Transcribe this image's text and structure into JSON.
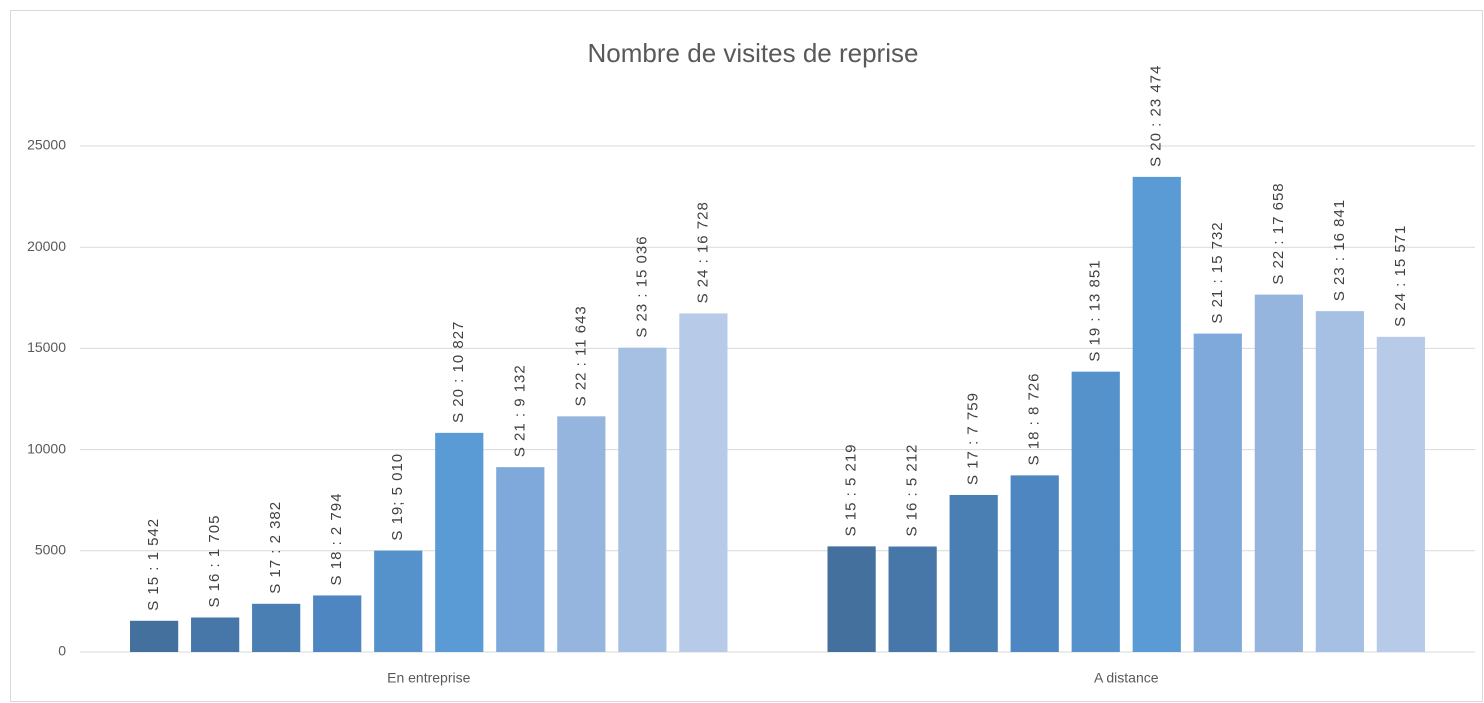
{
  "chart_data": {
    "type": "bar",
    "title": "Nombre de visites de reprise",
    "categories": [
      "En entreprise",
      "A distance"
    ],
    "series": [
      {
        "color": "#43709c",
        "values": [
          1542,
          5219
        ],
        "value_labels": [
          "S 15 : 1 542",
          "S 15 : 5 219"
        ]
      },
      {
        "color": "#4677a8",
        "values": [
          1705,
          5212
        ],
        "value_labels": [
          "S 16 : 1 705",
          "S 16 : 5 212"
        ]
      },
      {
        "color": "#4a7fb3",
        "values": [
          2382,
          7759
        ],
        "value_labels": [
          "S 17 : 2 382",
          "S 17 : 7 759"
        ]
      },
      {
        "color": "#4d86c0",
        "values": [
          2794,
          8726
        ],
        "value_labels": [
          "S 18 : 2 794",
          "S 18 : 8 726"
        ]
      },
      {
        "color": "#5592cc",
        "values": [
          5010,
          13851
        ],
        "value_labels": [
          "S 19; 5 010",
          "S 19 : 13 851"
        ]
      },
      {
        "color": "#5b9bd5",
        "values": [
          10827,
          23474
        ],
        "value_labels": [
          "S 20 : 10 827",
          "S 20 : 23 474"
        ]
      },
      {
        "color": "#7ea9da",
        "values": [
          9132,
          15732
        ],
        "value_labels": [
          "S 21 : 9 132",
          "S 21 : 15 732"
        ]
      },
      {
        "color": "#96b5de",
        "values": [
          11643,
          17658
        ],
        "value_labels": [
          "S 22 : 11 643",
          "S 22 : 17 658"
        ]
      },
      {
        "color": "#a6c0e3",
        "values": [
          15036,
          16841
        ],
        "value_labels": [
          "S 23 : 15 036",
          "S 23 : 16 841"
        ]
      },
      {
        "color": "#b7cbe8",
        "values": [
          16728,
          15571
        ],
        "value_labels": [
          "S 24 : 16 728",
          "S 24 : 15 571"
        ]
      }
    ],
    "ylim": [
      0,
      25000
    ],
    "yticks": [
      0,
      5000,
      10000,
      15000,
      20000,
      25000
    ],
    "grid": true
  }
}
